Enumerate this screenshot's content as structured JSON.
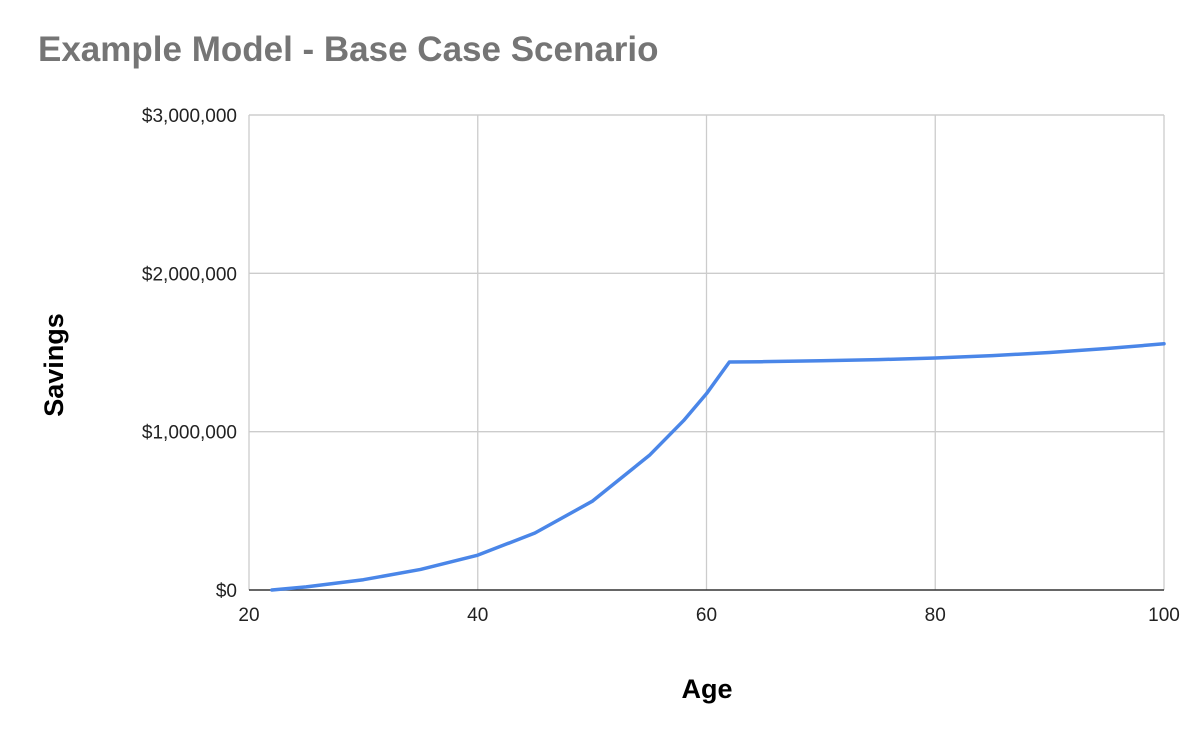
{
  "chart_data": {
    "type": "line",
    "title": "Example Model - Base Case Scenario",
    "xlabel": "Age",
    "ylabel": "Savings",
    "xlim": [
      20,
      100
    ],
    "ylim": [
      0,
      3000000
    ],
    "x_ticks": [
      20,
      40,
      60,
      80,
      100
    ],
    "y_ticks": [
      0,
      1000000,
      2000000,
      3000000
    ],
    "x_tick_labels": [
      "20",
      "40",
      "60",
      "80",
      "100"
    ],
    "y_tick_labels": [
      "$0",
      "$1,000,000",
      "$2,000,000",
      "$3,000,000"
    ],
    "grid": true,
    "legend": "none",
    "series": [
      {
        "color": "#4a86e8",
        "x": [
          22,
          25,
          30,
          35,
          40,
          45,
          50,
          55,
          58,
          60,
          62,
          65,
          70,
          75,
          80,
          85,
          90,
          95,
          100
        ],
        "y": [
          0,
          20000,
          65000,
          130000,
          220000,
          360000,
          560000,
          850000,
          1070000,
          1240000,
          1440000,
          1442000,
          1448000,
          1455000,
          1465000,
          1480000,
          1500000,
          1525000,
          1555000
        ]
      }
    ]
  }
}
